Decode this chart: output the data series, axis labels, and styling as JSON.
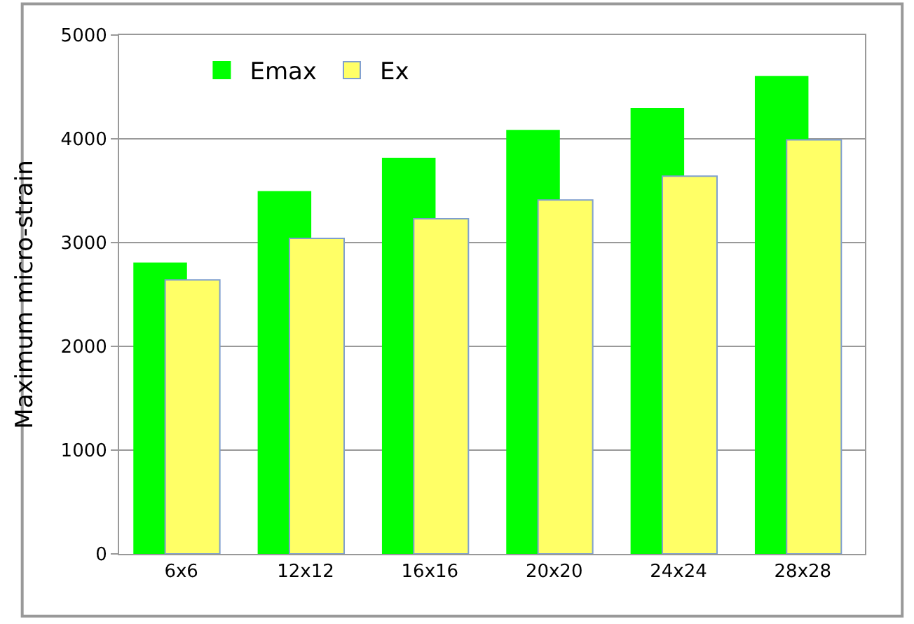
{
  "chart_data": {
    "type": "bar",
    "ylabel": "Maximum micro-strain",
    "categories": [
      "6x6",
      "12x12",
      "16x16",
      "20x20",
      "24x24",
      "28x28"
    ],
    "series": [
      {
        "name": "Emax",
        "color": "#00ff00",
        "values": [
          2800,
          3490,
          3810,
          4080,
          4290,
          4600
        ]
      },
      {
        "name": "Ex",
        "color": "#ffff66",
        "values": [
          2640,
          3040,
          3230,
          3410,
          3640,
          3990
        ]
      }
    ],
    "ylim": [
      0,
      5000
    ],
    "yticks": [
      0,
      1000,
      2000,
      3000,
      4000,
      5000
    ],
    "grid": "y",
    "legend": "top left"
  }
}
